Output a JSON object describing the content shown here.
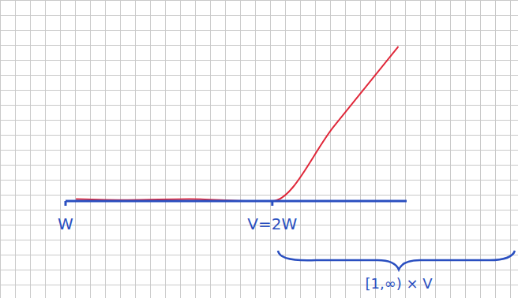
{
  "chart_data": {
    "type": "line",
    "x": [
      1.05,
      1.3,
      1.6,
      1.9,
      2.0,
      2.3,
      2.61
    ],
    "values": [
      0.01,
      0.005,
      0.01,
      0.0,
      0.0,
      0.37,
      0.76
    ],
    "color": "#e0283a",
    "xlim": [
      1,
      2.65
    ],
    "xticks": [
      {
        "value": 1,
        "label": "W"
      },
      {
        "value": 2,
        "label": "V=2W"
      }
    ],
    "ylim": [
      0,
      0.95
    ],
    "tick_labels": "x",
    "annotations": [
      "[1,∞) × V"
    ]
  }
}
